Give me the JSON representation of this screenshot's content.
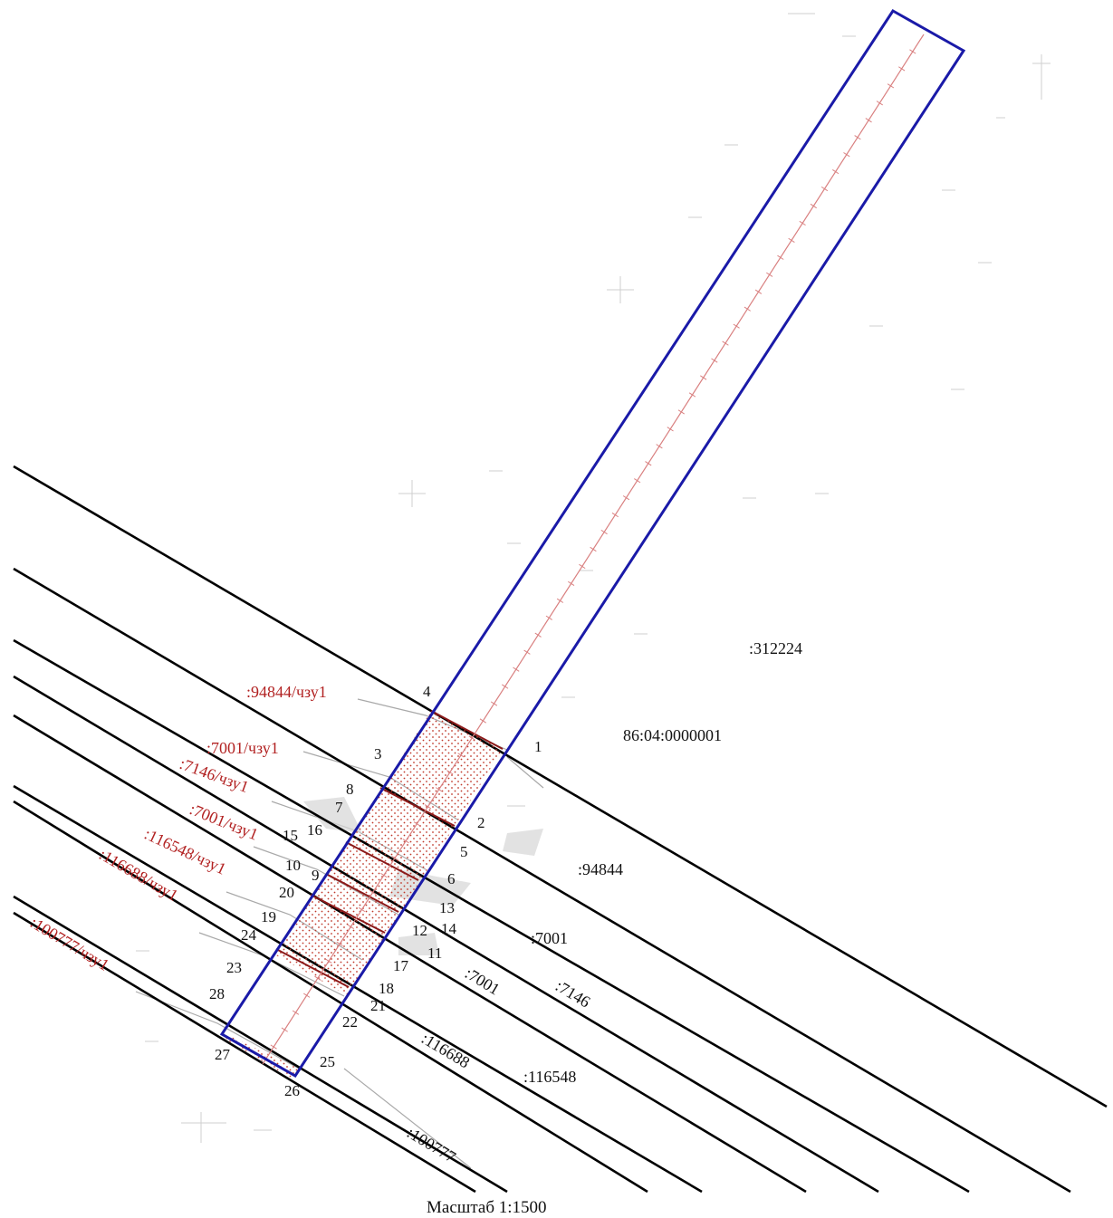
{
  "scale_label": "Масштаб 1:1500",
  "colors": {
    "boundary": "#1a1aa8",
    "parcel_line": "#000000",
    "red_label": "#b22222",
    "hatch": "#c0392b"
  },
  "parcels": [
    ":312224",
    "86:04:0000001",
    ":94844",
    ":7001",
    ":7146",
    ":116548",
    ":7001",
    ":116688",
    ":100777"
  ],
  "subparcels": [
    ":94844/чзу1",
    ":7001/чзу1",
    ":7146/чзу1",
    ":7001/чзу1",
    ":116548/чзу1",
    ":116688/чзу1",
    ":100777/чзу1"
  ],
  "points": [
    "1",
    "2",
    "3",
    "4",
    "5",
    "6",
    "7",
    "8",
    "9",
    "10",
    "11",
    "12",
    "13",
    "14",
    "15",
    "16",
    "17",
    "18",
    "19",
    "20",
    "21",
    "22",
    "23",
    "24",
    "25",
    "26",
    "27",
    "28"
  ]
}
